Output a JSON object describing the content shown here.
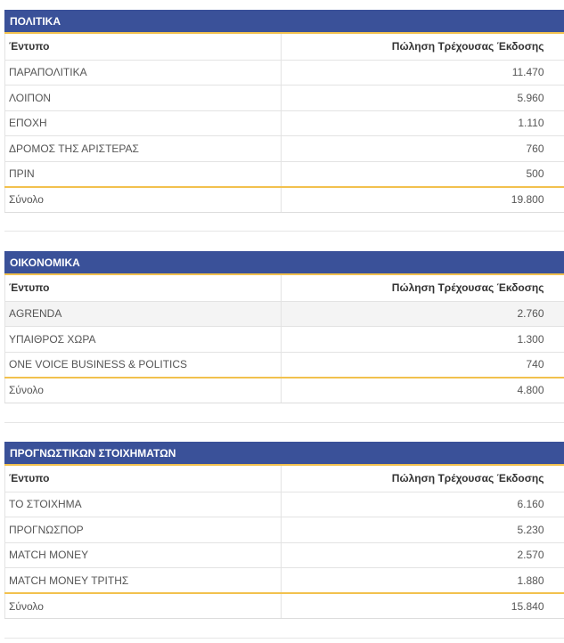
{
  "sections": [
    {
      "title": "ΠΟΛΙΤΙΚΑ",
      "col_name": "Έντυπο",
      "col_value": "Πώληση Τρέχουσας Έκδοσης",
      "rows": [
        {
          "name": "ΠΑΡΑΠΟΛΙΤΙΚΑ",
          "value": "11.470"
        },
        {
          "name": "ΛΟΙΠΟΝ",
          "value": "5.960"
        },
        {
          "name": "ΕΠΟΧΗ",
          "value": "1.110"
        },
        {
          "name": "ΔΡΟΜΟΣ ΤΗΣ ΑΡΙΣΤΕΡΑΣ",
          "value": "760"
        },
        {
          "name": "ΠΡΙΝ",
          "value": "500"
        }
      ],
      "total_label": "Σύνολο",
      "total_value": "19.800"
    },
    {
      "title": "ΟΙΚΟΝΟΜΙΚΑ",
      "col_name": "Έντυπο",
      "col_value": "Πώληση Τρέχουσας Έκδοσης",
      "rows": [
        {
          "name": "AGRENDA",
          "value": "2.760"
        },
        {
          "name": "ΥΠΑΙΘΡΟΣ ΧΩΡΑ",
          "value": "1.300"
        },
        {
          "name": "ONE VOICE BUSINESS & POLITICS",
          "value": "740"
        }
      ],
      "total_label": "Σύνολο",
      "total_value": "4.800"
    },
    {
      "title": "ΠΡΟΓΝΩΣΤΙΚΩΝ ΣΤΟΙΧΗΜΑΤΩΝ",
      "col_name": "Έντυπο",
      "col_value": "Πώληση Τρέχουσας Έκδοσης",
      "rows": [
        {
          "name": "ΤΟ ΣΤΟΙΧΗΜΑ",
          "value": "6.160"
        },
        {
          "name": "ΠΡΟΓΝΩΣΠΟΡ",
          "value": "5.230"
        },
        {
          "name": "MATCH MONEY",
          "value": "2.570"
        },
        {
          "name": "MATCH MONEY ΤΡΙΤΗΣ",
          "value": "1.880"
        }
      ],
      "total_label": "Σύνολο",
      "total_value": "15.840"
    }
  ],
  "colors": {
    "header_bg": "#3a5199",
    "accent": "#f2c14e"
  }
}
